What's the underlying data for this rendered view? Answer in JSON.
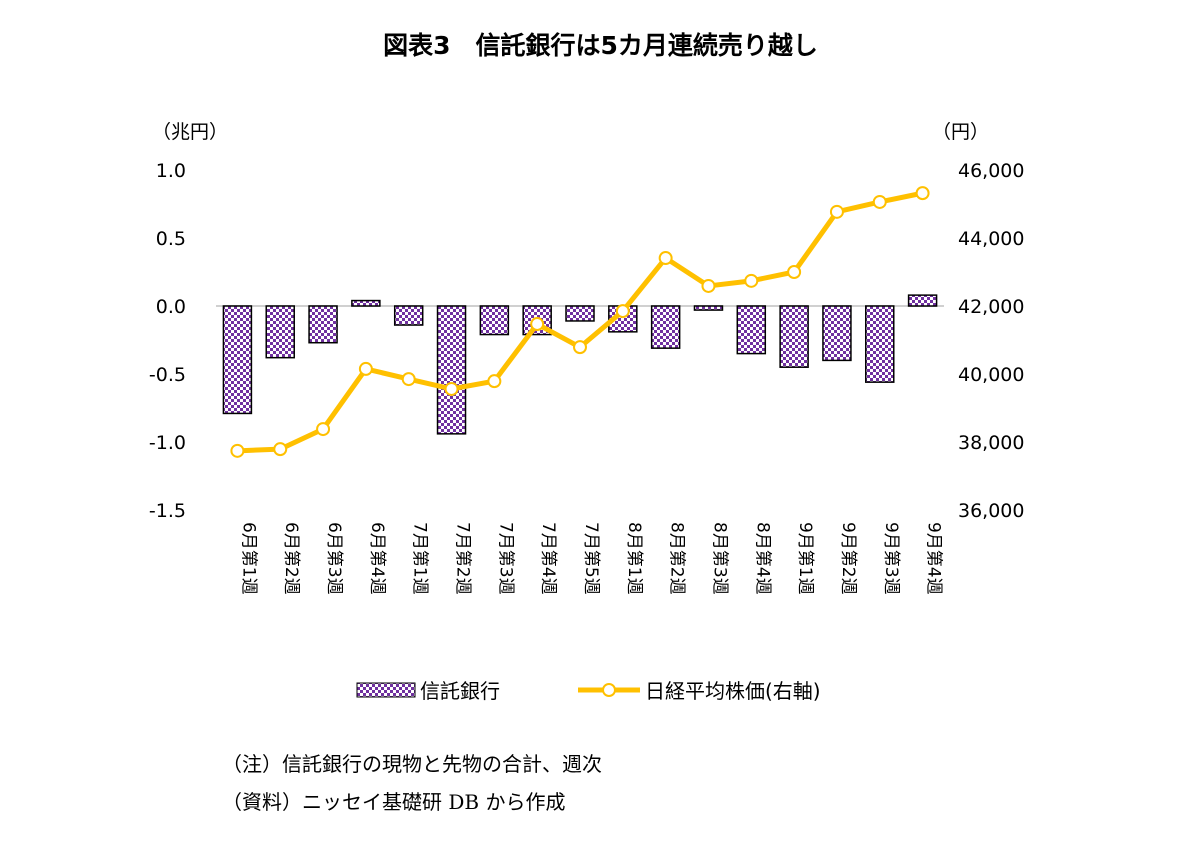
{
  "chart_data": {
    "type": "bar+line",
    "title": "図表3　信託銀行は5カ月連続売り越し",
    "left_axis": {
      "unit_label": "（兆円）",
      "ylim": [
        -1.5,
        1.0
      ],
      "ticks": [
        "1.0",
        "0.5",
        "0.0",
        "-0.5",
        "-1.0",
        "-1.5"
      ]
    },
    "right_axis": {
      "unit_label": "（円）",
      "ylim": [
        36000,
        46000
      ],
      "ticks": [
        "46,000",
        "44,000",
        "42,000",
        "40,000",
        "38,000",
        "36,000"
      ]
    },
    "categories": [
      "6月第1週",
      "6月第2週",
      "6月第3週",
      "6月第4週",
      "7月第1週",
      "7月第2週",
      "7月第3週",
      "7月第4週",
      "7月第5週",
      "8月第1週",
      "8月第2週",
      "8月第3週",
      "8月第4週",
      "9月第1週",
      "9月第2週",
      "9月第3週",
      "9月第4週"
    ],
    "series": [
      {
        "name": "信託銀行",
        "type": "bar",
        "axis": "left",
        "color": "#7030a0",
        "values": [
          -0.79,
          -0.38,
          -0.27,
          0.04,
          -0.14,
          -0.94,
          -0.21,
          -0.21,
          -0.11,
          -0.19,
          -0.31,
          -0.03,
          -0.35,
          -0.45,
          -0.4,
          -0.56,
          0.08
        ]
      },
      {
        "name": "日経平均株価(右軸)",
        "type": "line",
        "axis": "right",
        "color": "#ffc000",
        "values": [
          37740,
          37790,
          38380,
          40150,
          39850,
          39560,
          39790,
          41470,
          40790,
          41850,
          43410,
          42590,
          42740,
          43000,
          44770,
          45060,
          45320
        ]
      }
    ],
    "grid": false,
    "legend": "bottom"
  },
  "notes": [
    "（注）信託銀行の現物と先物の合計、週次",
    "（資料）ニッセイ基礎研 DB から作成"
  ]
}
